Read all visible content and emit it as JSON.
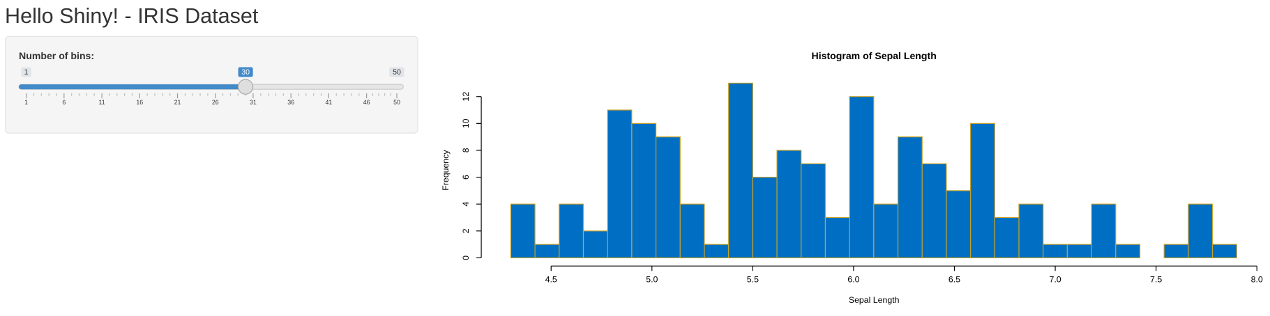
{
  "page_title": "Hello Shiny! - IRIS Dataset",
  "slider": {
    "label": "Number of bins:",
    "min": 1,
    "max": 50,
    "value": 30,
    "ticks": [
      1,
      6,
      11,
      16,
      21,
      26,
      31,
      36,
      41,
      46,
      50
    ]
  },
  "chart_data": {
    "type": "histogram",
    "title": "Histogram of Sepal Length",
    "x_label": "Sepal Length",
    "y_label": "Frequency",
    "bins": [
      4.3,
      4.42,
      4.54,
      4.66,
      4.78,
      4.9,
      5.02,
      5.14,
      5.26,
      5.38,
      5.5,
      5.62,
      5.74,
      5.86,
      5.98,
      6.1,
      6.22,
      6.34,
      6.46,
      6.58,
      6.7,
      6.82,
      6.94,
      7.06,
      7.18,
      7.3,
      7.42,
      7.54,
      7.66,
      7.78,
      7.9
    ],
    "values": [
      4,
      1,
      4,
      2,
      11,
      10,
      9,
      4,
      1,
      13,
      6,
      8,
      7,
      3,
      12,
      4,
      9,
      7,
      5,
      10,
      3,
      4,
      1,
      1,
      4,
      1,
      0,
      1,
      4,
      1
    ],
    "color": "#006fc3",
    "edge_color": "#c9a227",
    "xlim": [
      4.3,
      8.0
    ],
    "xticks": [
      4.5,
      5.0,
      5.5,
      6.0,
      6.5,
      7.0,
      7.5,
      8.0
    ],
    "ylim": [
      0,
      13
    ],
    "yticks": [
      0,
      2,
      4,
      6,
      8,
      10,
      12
    ]
  }
}
